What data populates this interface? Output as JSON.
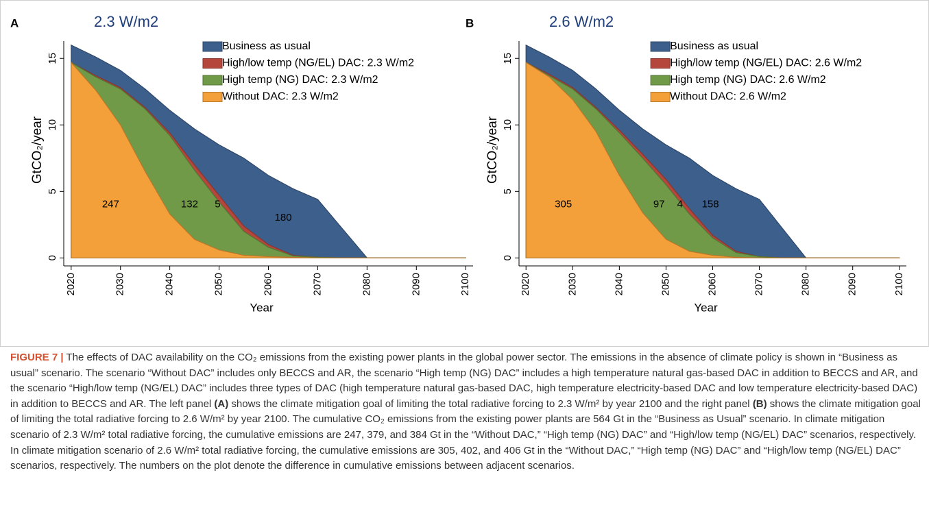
{
  "chart_data": [
    {
      "type": "area",
      "panel_label": "A",
      "title": "2.3 W/m2",
      "xlabel": "Year",
      "ylabel": "GtCO₂/year",
      "x": [
        2020,
        2025,
        2030,
        2035,
        2040,
        2045,
        2050,
        2055,
        2060,
        2065,
        2070,
        2075,
        2080,
        2085,
        2090,
        2095,
        2100
      ],
      "series": [
        {
          "name": "Business as usual",
          "color": "#3d5f8c",
          "values": [
            16,
            15.1,
            14.1,
            12.7,
            11.1,
            9.7,
            8.5,
            7.5,
            6.2,
            5.2,
            4.4,
            2.2,
            0,
            0,
            0,
            0,
            0
          ]
        },
        {
          "name": "High/low temp (NG/EL) DAC: 2.3 W/m2",
          "color": "#b5463c",
          "values": [
            14.7,
            13.7,
            12.8,
            11.3,
            9.4,
            7.0,
            4.7,
            2.4,
            1.0,
            0.2,
            0.05,
            0,
            0,
            0,
            0,
            0,
            0
          ]
        },
        {
          "name": "High temp (NG) DAC: 2.3 W/m2",
          "color": "#709a48",
          "values": [
            14.7,
            13.6,
            12.7,
            11.2,
            9.2,
            6.6,
            4.2,
            2.0,
            0.8,
            0.15,
            0.05,
            0,
            0,
            0,
            0,
            0,
            0
          ]
        },
        {
          "name": "Without DAC: 2.3 W/m2",
          "color": "#f4a03a",
          "values": [
            14.7,
            12.6,
            10.0,
            6.5,
            3.3,
            1.4,
            0.6,
            0.2,
            0.1,
            0.05,
            0,
            0,
            0,
            0,
            0,
            0,
            0
          ]
        }
      ],
      "annotations": [
        "247",
        "132",
        "5",
        "180"
      ],
      "xlim": [
        2018.5,
        2101.5
      ],
      "ylim": [
        -0.6,
        16.3
      ],
      "xticks": [
        2020,
        2030,
        2040,
        2050,
        2060,
        2070,
        2080,
        2090,
        2100
      ],
      "yticks": [
        0,
        5,
        10,
        15
      ],
      "legend": "top"
    },
    {
      "type": "area",
      "panel_label": "B",
      "title": "2.6 W/m2",
      "xlabel": "Year",
      "ylabel": "GtCO₂/year",
      "x": [
        2020,
        2025,
        2030,
        2035,
        2040,
        2045,
        2050,
        2055,
        2060,
        2065,
        2070,
        2075,
        2080,
        2085,
        2090,
        2095,
        2100
      ],
      "series": [
        {
          "name": "Business as usual",
          "color": "#3d5f8c",
          "values": [
            16,
            15.1,
            14.1,
            12.7,
            11.1,
            9.7,
            8.5,
            7.5,
            6.2,
            5.2,
            4.4,
            2.2,
            0,
            0,
            0,
            0,
            0
          ]
        },
        {
          "name": "High/low temp (NG/EL) DAC: 2.6 W/m2",
          "color": "#b5463c",
          "values": [
            14.7,
            13.8,
            12.8,
            11.3,
            9.6,
            7.8,
            5.9,
            3.7,
            1.7,
            0.5,
            0.1,
            0,
            0,
            0,
            0,
            0,
            0
          ]
        },
        {
          "name": "High temp (NG) DAC: 2.6 W/m2",
          "color": "#709a48",
          "values": [
            14.7,
            13.7,
            12.7,
            11.2,
            9.4,
            7.5,
            5.5,
            3.3,
            1.5,
            0.4,
            0.1,
            0,
            0,
            0,
            0,
            0,
            0
          ]
        },
        {
          "name": "Without DAC: 2.6 W/m2",
          "color": "#f4a03a",
          "values": [
            14.7,
            13.6,
            11.9,
            9.5,
            6.2,
            3.4,
            1.4,
            0.5,
            0.2,
            0.05,
            0,
            0,
            0,
            0,
            0,
            0,
            0
          ]
        }
      ],
      "annotations": [
        "305",
        "97",
        "4",
        "158"
      ],
      "xlim": [
        2018.5,
        2101.5
      ],
      "ylim": [
        -0.6,
        16.3
      ],
      "xticks": [
        2020,
        2030,
        2040,
        2050,
        2060,
        2070,
        2080,
        2090,
        2100
      ],
      "yticks": [
        0,
        5,
        10,
        15
      ],
      "legend": "top"
    }
  ],
  "caption": {
    "label": "FIGURE 7 |",
    "segments": [
      {
        "text": " The effects of DAC availability on the CO₂ emissions from the existing power plants in the global power sector. The emissions in the absence of climate policy is shown in “Business as usual” scenario. The scenario “Without DAC” includes only BECCS and AR, the scenario “High temp (NG) DAC” includes a high temperature natural gas-based DAC in addition to BECCS and AR, and the scenario “High/low temp (NG/EL) DAC” includes three types of DAC (high temperature natural gas-based DAC, high temperature electricity-based DAC and low temperature electricity-based DAC) in addition to BECCS and AR. The left panel ",
        "bold": false
      },
      {
        "text": "(A)",
        "bold": true
      },
      {
        "text": " shows the climate mitigation goal of limiting the total radiative forcing to 2.3 W/m² by year 2100 and the right panel ",
        "bold": false
      },
      {
        "text": "(B)",
        "bold": true
      },
      {
        "text": " shows the climate mitigation goal of limiting the total radiative forcing to 2.6 W/m² by year 2100. The cumulative CO₂ emissions from the existing power plants are 564 Gt in the “Business as Usual” scenario. In climate mitigation scenario of 2.3 W/m² total radiative forcing, the cumulative emissions are 247, 379, and 384 Gt in the “Without DAC,” “High temp (NG) DAC” and “High/low temp (NG/EL) DAC” scenarios, respectively. In climate mitigation scenario of 2.6 W/m² total radiative forcing, the cumulative emissions are 305, 402, and 406 Gt in the “Without DAC,” “High temp (NG) DAC” and “High/low temp (NG/EL) DAC” scenarios, respectively. The numbers on the plot denote the difference in cumulative emissions between adjacent scenarios.",
        "bold": false
      }
    ]
  }
}
